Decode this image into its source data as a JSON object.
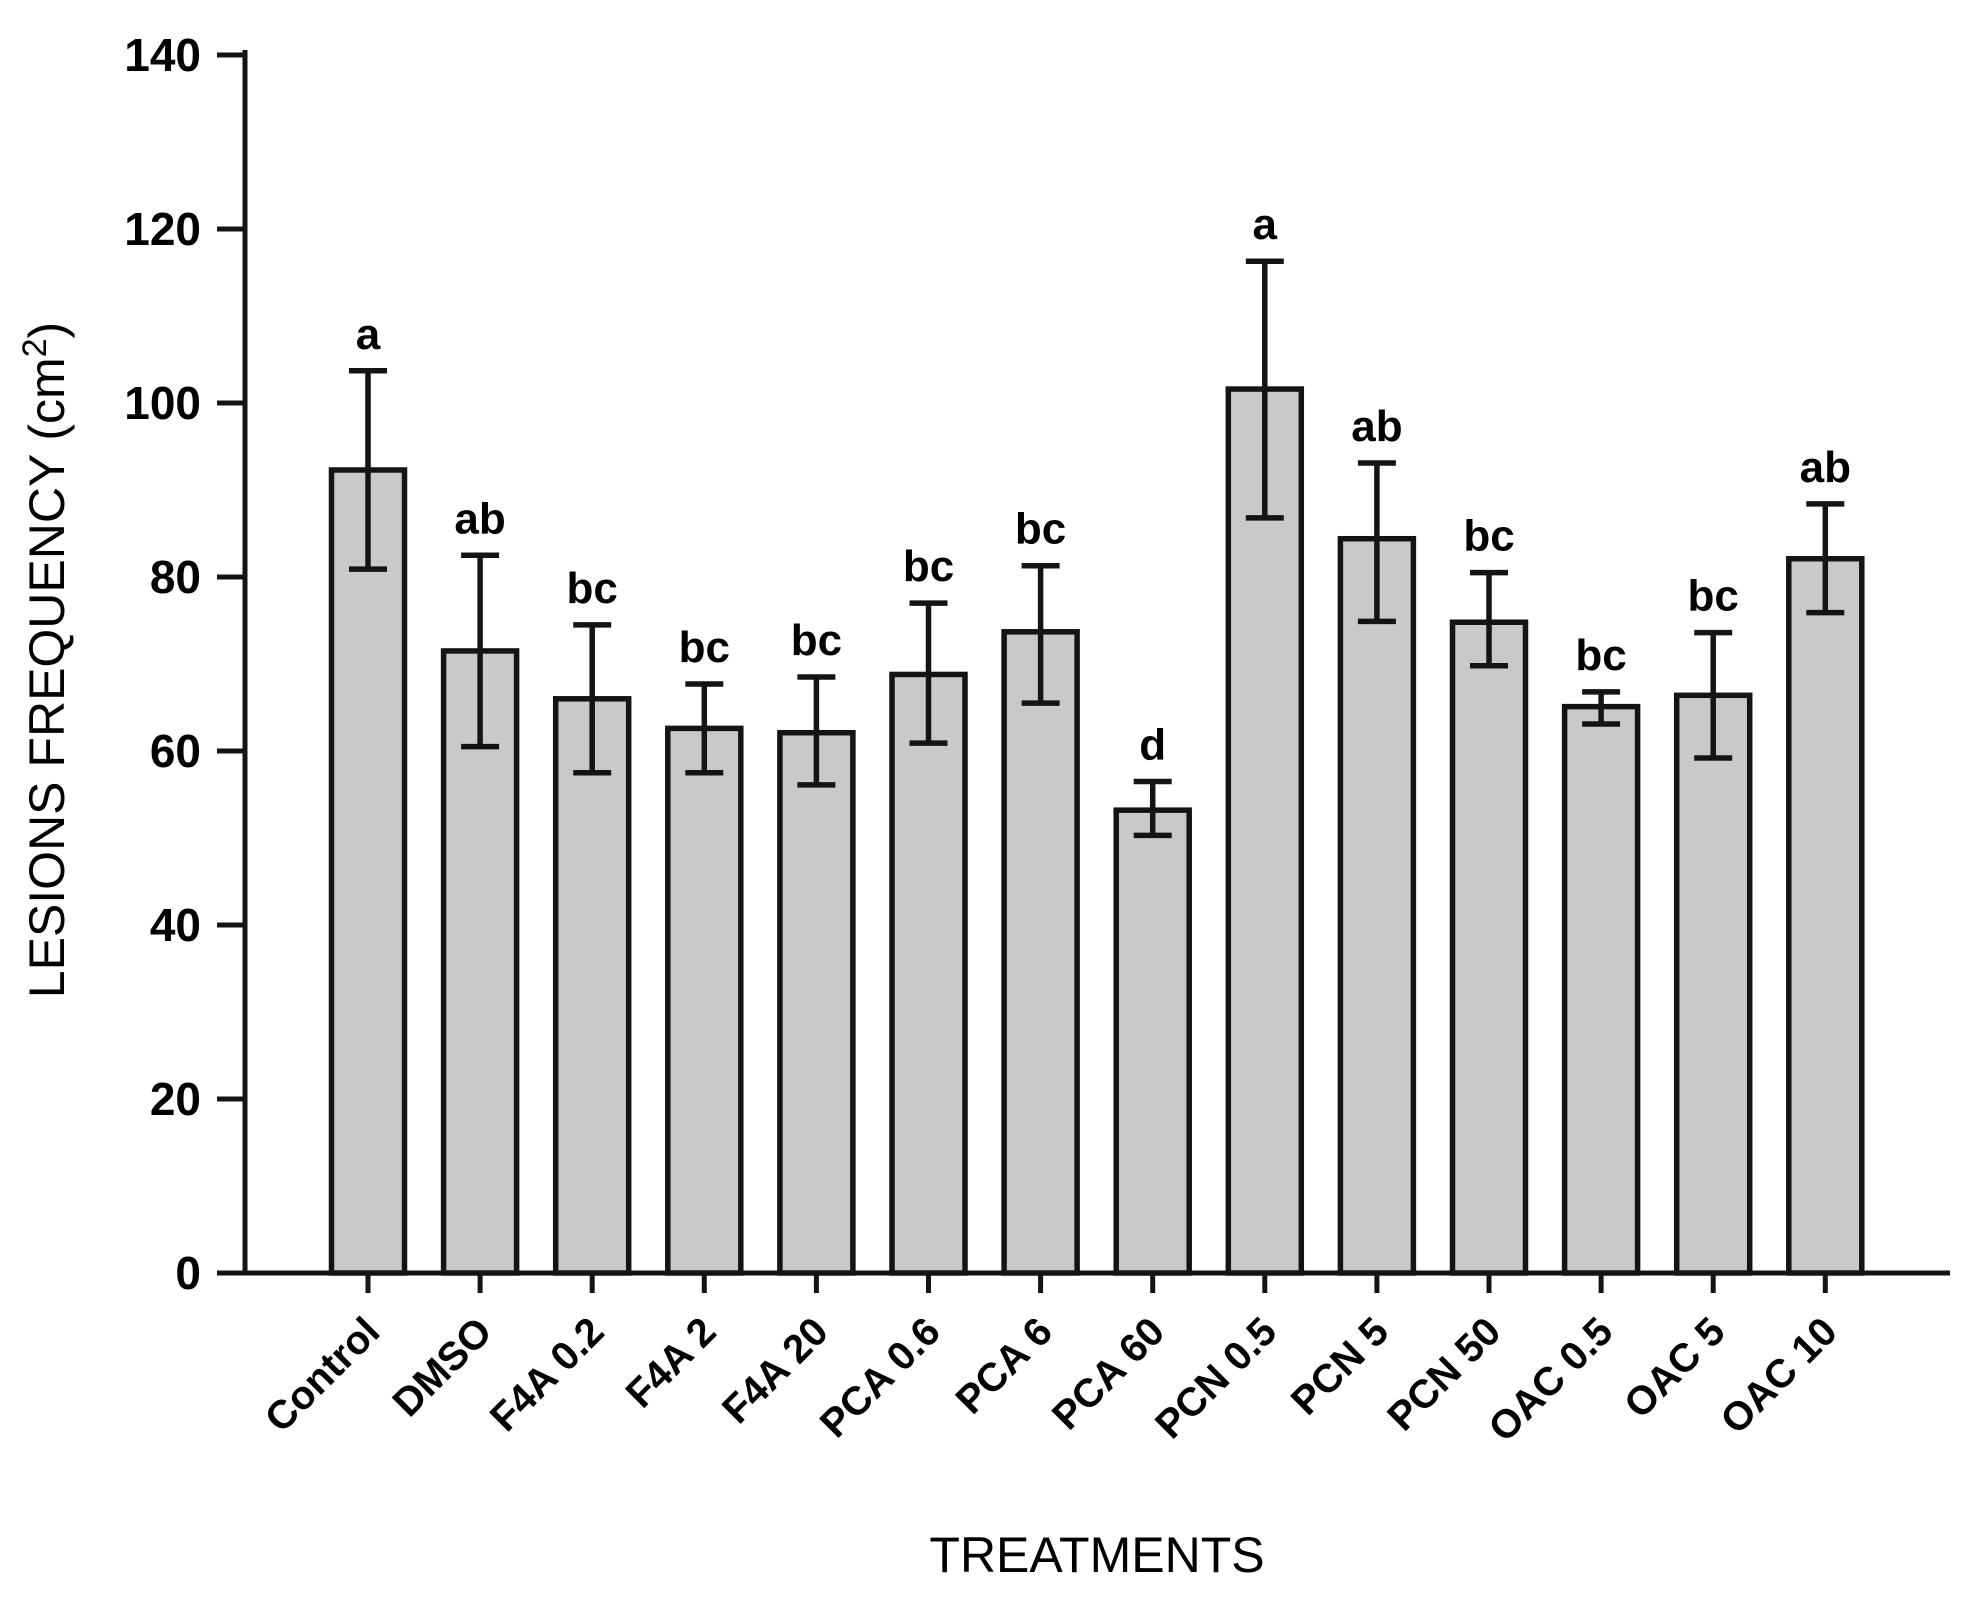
{
  "chart_data": {
    "type": "bar",
    "title": "",
    "xlabel": "TREATMENTS",
    "ylabel": "LESIONS FREQUENCY (cm²)",
    "ylabel_parts": {
      "prefix": "LESIONS FREQUENCY (cm",
      "sup": "2",
      "suffix": ")"
    },
    "ylim": [
      0,
      140
    ],
    "yticks": [
      0,
      20,
      40,
      60,
      80,
      100,
      120,
      140
    ],
    "grid": false,
    "legend": "none",
    "bar_fill_color": "#c9c9c9",
    "bar_edge_color": "#141414",
    "error_bar_color": "#141414",
    "axis_color": "#141414",
    "categories": [
      "Control",
      "DMSO",
      "F4A 0.2",
      "F4A 2",
      "F4A 20",
      "PCA 0.6",
      "PCA 6",
      "PCA 60",
      "PCN 0.5",
      "PCN 5",
      "PCN 50",
      "OAC 0.5",
      "OAC 5",
      "OAC 10"
    ],
    "values": [
      92.3,
      71.5,
      66.0,
      62.6,
      62.1,
      68.8,
      73.7,
      53.2,
      101.6,
      84.4,
      74.8,
      65.1,
      66.4,
      82.1
    ],
    "error_up": [
      11.4,
      11.0,
      8.5,
      5.1,
      6.4,
      8.2,
      7.6,
      3.3,
      14.7,
      8.7,
      5.7,
      1.7,
      7.2,
      6.3
    ],
    "error_down": [
      11.4,
      11.0,
      8.5,
      5.1,
      6.0,
      7.9,
      8.2,
      2.9,
      14.8,
      9.5,
      5.0,
      2.0,
      7.2,
      6.2
    ],
    "sig_letters": [
      "a",
      "ab",
      "bc",
      "bc",
      "bc",
      "bc",
      "bc",
      "d",
      "a",
      "ab",
      "bc",
      "bc",
      "bc",
      "ab"
    ]
  }
}
